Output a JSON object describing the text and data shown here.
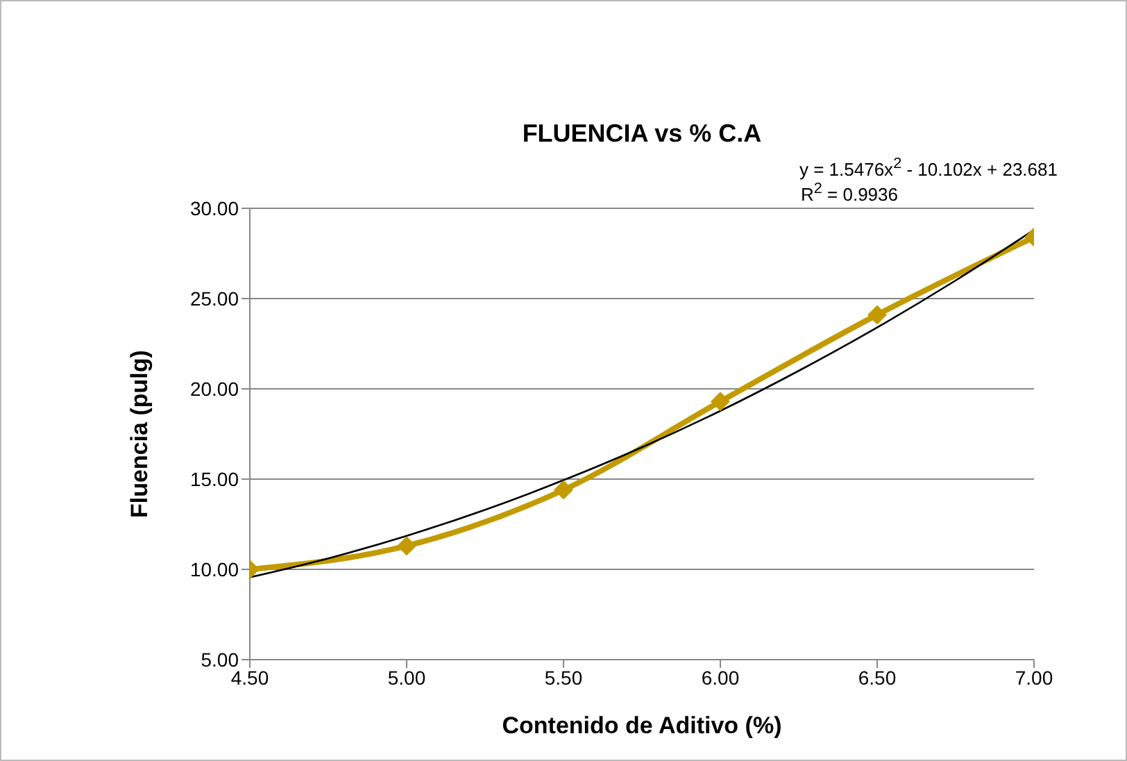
{
  "chart_data": {
    "type": "line",
    "title": "FLUENCIA vs % C.A",
    "xlabel": "Contenido de Aditivo (%)",
    "ylabel": "Fluencia (pulg)",
    "annotations": [
      "y = 1.5476x$^{2}$ - 10.102x + 23.681",
      "R$^{2}$ = 0.9936"
    ],
    "x": [
      4.5,
      5.0,
      5.5,
      6.0,
      6.5,
      7.0
    ],
    "series": [
      {
        "color": "#c39b00",
        "values": [
          10.0,
          11.3,
          14.4,
          19.3,
          24.1,
          28.4
        ],
        "marker": "diamond"
      },
      {
        "color": "#000000",
        "x": [
          4.5,
          4.75,
          5.0,
          5.25,
          5.5,
          5.75,
          6.0,
          6.25,
          6.5,
          6.75,
          7.0
        ],
        "values": [
          9.56,
          10.61,
          11.86,
          13.3,
          14.94,
          16.76,
          18.78,
          21.0,
          23.4,
          26.0,
          28.8
        ],
        "marker": "none"
      }
    ],
    "xlim": [
      4.5,
      7.0
    ],
    "xticks": [
      {
        "value": 4.5,
        "label": "4.50"
      },
      {
        "value": 5.0,
        "label": "5.00"
      },
      {
        "value": 5.5,
        "label": "5.50"
      },
      {
        "value": 6.0,
        "label": "6.00"
      },
      {
        "value": 6.5,
        "label": "6.50"
      },
      {
        "value": 7.0,
        "label": "7.00"
      }
    ],
    "ylim": [
      5,
      30
    ],
    "yticks": [
      {
        "value": 5,
        "label": "5.00"
      },
      {
        "value": 10,
        "label": "10.00"
      },
      {
        "value": 15,
        "label": "15.00"
      },
      {
        "value": 20,
        "label": "20.00"
      },
      {
        "value": 25,
        "label": "25.00"
      },
      {
        "value": 30,
        "label": "30.00"
      }
    ],
    "grid": "y",
    "line_style": "solid"
  }
}
